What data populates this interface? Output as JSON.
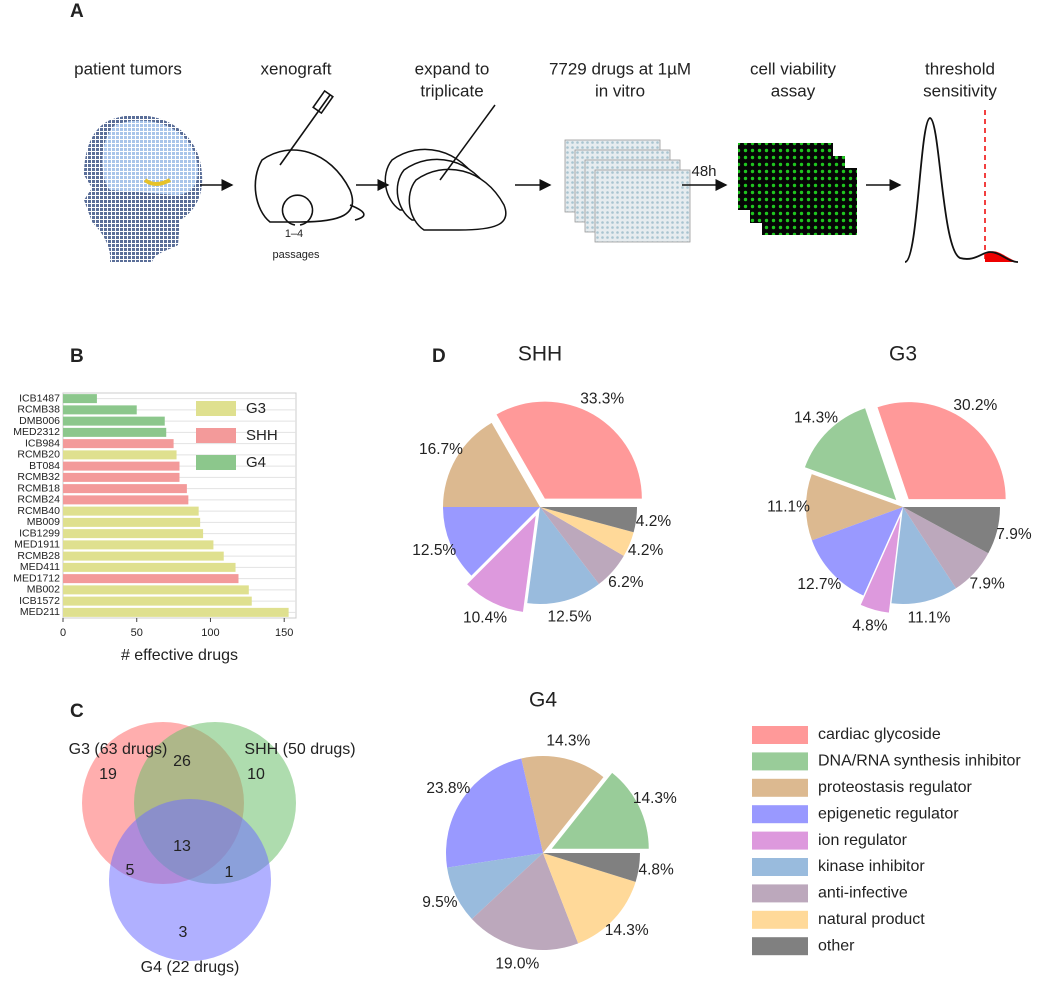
{
  "panel_labels": [
    "A",
    "B",
    "C",
    "D"
  ],
  "workflow": {
    "steps": [
      [
        "patient tumors"
      ],
      [
        "xenograft"
      ],
      [
        "expand to",
        "triplicate"
      ],
      [
        "7729 drugs at 1µM",
        "in vitro"
      ],
      [
        "cell viability",
        "assay"
      ],
      [
        "threshold",
        "sensitivity"
      ]
    ],
    "passages_range": "1–4",
    "passages": "passages",
    "incubation": "48h"
  },
  "chart_data": [
    {
      "type": "barh",
      "xlabel": "# effective drugs",
      "categories": [
        "ICB1487",
        "RCMB38",
        "DMB006",
        "MED2312",
        "ICB984",
        "RCMB20",
        "BT084",
        "RCMB32",
        "RCMB18",
        "RCMB24",
        "RCMB40",
        "MB009",
        "ICB1299",
        "MED1911",
        "RCMB28",
        "MED411",
        "MED1712",
        "MB002",
        "ICB1572",
        "MED211"
      ],
      "series": [
        {
          "name": "G3",
          "color": "#dfe08f",
          "values": [
            null,
            null,
            null,
            null,
            null,
            77,
            null,
            null,
            null,
            null,
            92,
            93,
            95,
            102,
            109,
            117,
            null,
            126,
            128,
            153
          ]
        },
        {
          "name": "SHH",
          "color": "#f39a9a",
          "values": [
            null,
            null,
            null,
            null,
            75,
            null,
            79,
            79,
            84,
            85,
            null,
            null,
            null,
            null,
            null,
            null,
            119,
            null,
            null,
            null
          ]
        },
        {
          "name": "G4",
          "color": "#8cc78c",
          "values": [
            23,
            50,
            69,
            70,
            null,
            null,
            null,
            null,
            null,
            null,
            null,
            null,
            null,
            null,
            null,
            null,
            null,
            null,
            null,
            null
          ]
        }
      ],
      "xlim": [
        0,
        158
      ],
      "xticks": [
        0,
        50,
        100,
        150
      ],
      "grid": true,
      "legend": "upper right"
    },
    {
      "type": "pie",
      "categories": [
        "cardiac glycoside",
        "DNA/RNA synthesis inhibitor",
        "proteostasis regulator",
        "epigenetic regulator",
        "ion regulator",
        "kinase inhibitor",
        "anti-infective",
        "natural product",
        "other"
      ],
      "colors": [
        "#ff9999",
        "#99cc99",
        "#dcb990",
        "#9999ff",
        "#dd99dd",
        "#99bbdd",
        "#bca8bc",
        "#ffd999",
        "#808080"
      ],
      "series": [
        {
          "name": "SHH",
          "values": [
            33.3,
            null,
            16.7,
            12.5,
            10.4,
            12.5,
            6.2,
            4.2,
            4.2
          ],
          "value_labels": [
            "33.3%",
            null,
            "16.7%",
            "12.5%",
            "10.4%",
            "12.5%",
            "6.2%",
            "4.2%",
            "4.2%"
          ],
          "explode": [
            true,
            false,
            false,
            false,
            true,
            false,
            false,
            false,
            false
          ]
        },
        {
          "name": "G3",
          "values": [
            30.2,
            14.3,
            11.1,
            12.7,
            4.8,
            11.1,
            7.9,
            null,
            7.9
          ],
          "value_labels": [
            "30.2%",
            "14.3%",
            "11.1%",
            "12.7%",
            "4.8%",
            "11.1%",
            "7.9%",
            null,
            "7.9%"
          ],
          "explode": [
            true,
            true,
            false,
            false,
            true,
            false,
            false,
            false,
            false
          ]
        },
        {
          "name": "G4",
          "values": [
            null,
            14.3,
            14.3,
            23.8,
            null,
            9.5,
            19.0,
            14.3,
            4.8
          ],
          "value_labels": [
            null,
            "14.3%",
            "14.3%",
            "23.8%",
            null,
            "9.5%",
            "19.0%",
            "14.3%",
            "4.8%"
          ],
          "explode": [
            false,
            true,
            false,
            false,
            false,
            false,
            false,
            false,
            false
          ]
        }
      ]
    }
  ],
  "venn": {
    "sets": [
      {
        "label": "G3 (63 drugs)",
        "color": "#ff6b6b"
      },
      {
        "label": "SHH (50 drugs)",
        "color": "#6cbf6c"
      },
      {
        "label": "G4 (22 drugs)",
        "color": "#7070ff"
      }
    ],
    "regions": [
      19,
      26,
      10,
      13,
      5,
      1,
      3
    ]
  }
}
